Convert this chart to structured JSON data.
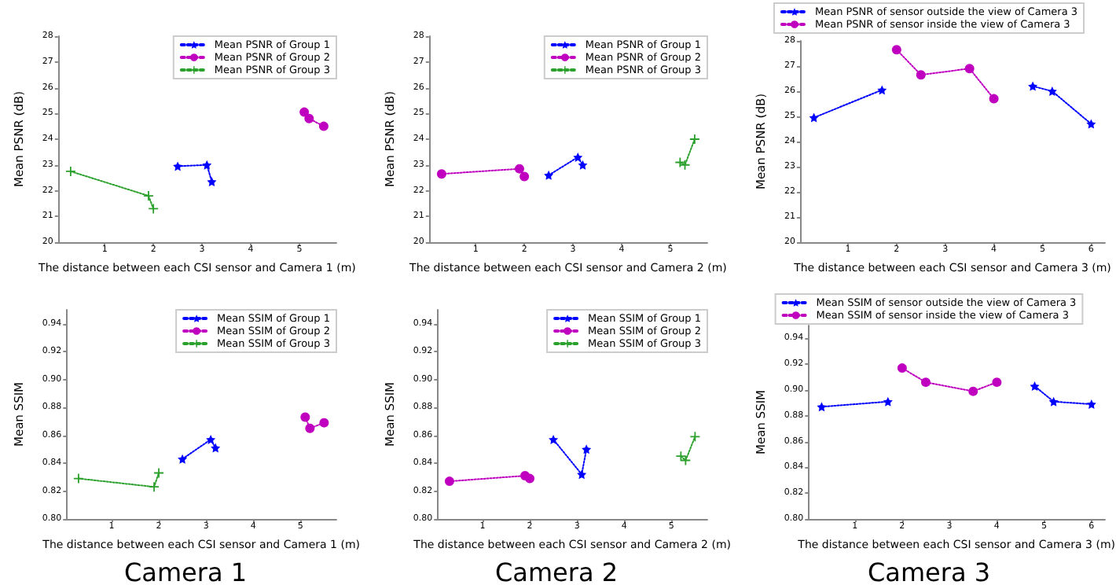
{
  "chart_data": [
    {
      "type": "line",
      "xlabel": "The distance between each CSI sensor and Camera 1 (m)",
      "ylabel": "Mean PSNR (dB)",
      "xlim": [
        0.04,
        5.76
      ],
      "xticks": [
        1,
        2,
        3,
        4,
        5
      ],
      "ylim": [
        20,
        28
      ],
      "yticks": [
        20,
        21,
        22,
        23,
        24,
        25,
        26,
        27,
        28
      ],
      "grid": false,
      "legend": "top right",
      "line_style": "dotted",
      "series": [
        {
          "name": "Mean PSNR of Group 1",
          "color": "#0000ff",
          "marker": "star",
          "x": [
            2.5,
            3.1,
            3.2
          ],
          "values": [
            22.95,
            23.0,
            22.35
          ]
        },
        {
          "name": "Mean PSNR of Group 2",
          "color": "#bf00bf",
          "marker": "circle",
          "x": [
            5.1,
            5.2,
            5.5
          ],
          "values": [
            25.05,
            24.8,
            24.5
          ]
        },
        {
          "name": "Mean PSNR of Group 3",
          "color": "#2ca02c",
          "marker": "cross",
          "x": [
            0.3,
            1.9,
            2.0
          ],
          "values": [
            22.75,
            21.8,
            21.3
          ]
        }
      ]
    },
    {
      "type": "line",
      "xlabel": "The distance between each CSI sensor and Camera 2 (m)",
      "ylabel": "Mean PSNR (dB)",
      "xlim": [
        0.04,
        5.76
      ],
      "xticks": [
        1,
        2,
        3,
        4,
        5
      ],
      "ylim": [
        20,
        28
      ],
      "yticks": [
        20,
        21,
        22,
        23,
        24,
        25,
        26,
        27,
        28
      ],
      "grid": false,
      "legend": "top right",
      "line_style": "dotted",
      "series": [
        {
          "name": "Mean PSNR of Group 1",
          "color": "#0000ff",
          "marker": "star",
          "x": [
            2.5,
            3.1,
            3.2
          ],
          "values": [
            22.6,
            23.3,
            23.0
          ]
        },
        {
          "name": "Mean PSNR of Group 2",
          "color": "#bf00bf",
          "marker": "circle",
          "x": [
            0.3,
            1.9,
            2.0
          ],
          "values": [
            22.65,
            22.85,
            22.55
          ]
        },
        {
          "name": "Mean PSNR of Group 3",
          "color": "#2ca02c",
          "marker": "cross",
          "x": [
            5.2,
            5.3,
            5.5
          ],
          "values": [
            23.1,
            23.0,
            24.0
          ]
        }
      ]
    },
    {
      "type": "line",
      "xlabel": "The distance between each CSI sensor and Camera 3 (m)",
      "ylabel": "Mean PSNR (dB)",
      "xlim": [
        0.015,
        6.285
      ],
      "xticks": [
        1,
        2,
        3,
        4,
        5,
        6
      ],
      "ylim": [
        20,
        28
      ],
      "yticks": [
        20,
        21,
        22,
        23,
        24,
        25,
        26,
        27,
        28
      ],
      "grid": false,
      "legend": "top",
      "line_style": "dotted",
      "series": [
        {
          "name": "Mean PSNR of sensor outside the view of Camera 3",
          "color": "#0000ff",
          "marker": "star",
          "x": [
            0.3,
            1.7,
            3.0,
            4.8,
            5.2,
            6.0
          ],
          "values": [
            24.95,
            26.05,
            null,
            26.2,
            26.0,
            24.7
          ]
        },
        {
          "name": "Mean PSNR of sensor inside the view of Camera 3",
          "color": "#bf00bf",
          "marker": "circle",
          "x": [
            2.0,
            2.5,
            3.5,
            4.0
          ],
          "values": [
            27.65,
            26.65,
            26.9,
            25.7
          ]
        }
      ]
    },
    {
      "type": "line",
      "xlabel": "The distance between each CSI sensor and Camera 1 (m)",
      "ylabel": "Mean SSIM",
      "annotations": [
        "Camera 1"
      ],
      "xlim": [
        0.04,
        5.76
      ],
      "xticks": [
        1,
        2,
        3,
        4,
        5
      ],
      "ylim": [
        0.8,
        0.95
      ],
      "yticks": [
        {
          "value": 0.8,
          "label": "0.80"
        },
        {
          "value": 0.82,
          "label": "0.82"
        },
        {
          "value": 0.84,
          "label": "0.84"
        },
        {
          "value": 0.86,
          "label": "0.86"
        },
        {
          "value": 0.88,
          "label": "0.88"
        },
        {
          "value": 0.9,
          "label": "0.90"
        },
        {
          "value": 0.92,
          "label": "0.92"
        },
        {
          "value": 0.94,
          "label": "0.94"
        }
      ],
      "grid": false,
      "legend": "top right",
      "line_style": "dotted",
      "series": [
        {
          "name": "Mean SSIM of Group 1",
          "color": "#0000ff",
          "marker": "star",
          "x": [
            2.5,
            3.1,
            3.2
          ],
          "values": [
            0.843,
            0.857,
            0.851
          ]
        },
        {
          "name": "Mean SSIM of Group 2",
          "color": "#bf00bf",
          "marker": "circle",
          "x": [
            5.1,
            5.2,
            5.5
          ],
          "values": [
            0.873,
            0.865,
            0.869
          ]
        },
        {
          "name": "Mean SSIM of Group 3",
          "color": "#2ca02c",
          "marker": "cross",
          "x": [
            0.3,
            1.9,
            2.0
          ],
          "values": [
            0.829,
            0.823,
            0.833
          ]
        }
      ]
    },
    {
      "type": "line",
      "xlabel": "The distance between each CSI sensor and Camera 2 (m)",
      "ylabel": "Mean SSIM",
      "annotations": [
        "Camera 2"
      ],
      "xlim": [
        0.04,
        5.76
      ],
      "xticks": [
        1,
        2,
        3,
        4,
        5
      ],
      "ylim": [
        0.8,
        0.95
      ],
      "yticks": [
        {
          "value": 0.8,
          "label": "0.80"
        },
        {
          "value": 0.82,
          "label": "0.82"
        },
        {
          "value": 0.84,
          "label": "0.84"
        },
        {
          "value": 0.86,
          "label": "0.86"
        },
        {
          "value": 0.88,
          "label": "0.88"
        },
        {
          "value": 0.9,
          "label": "0.90"
        },
        {
          "value": 0.92,
          "label": "0.92"
        },
        {
          "value": 0.94,
          "label": "0.94"
        }
      ],
      "grid": false,
      "legend": "top right",
      "line_style": "dotted",
      "series": [
        {
          "name": "Mean SSIM of Group 1",
          "color": "#0000ff",
          "marker": "star",
          "x": [
            2.5,
            3.1,
            3.2
          ],
          "values": [
            0.857,
            0.832,
            0.85
          ]
        },
        {
          "name": "Mean SSIM of Group 2",
          "color": "#bf00bf",
          "marker": "circle",
          "x": [
            0.3,
            1.9,
            2.0
          ],
          "values": [
            0.827,
            0.831,
            0.829
          ]
        },
        {
          "name": "Mean SSIM of Group 3",
          "color": "#2ca02c",
          "marker": "cross",
          "x": [
            5.2,
            5.3,
            5.5
          ],
          "values": [
            0.845,
            0.842,
            0.859
          ]
        }
      ]
    },
    {
      "type": "line",
      "xlabel": "The distance between each CSI sensor and Camera 3 (m)",
      "ylabel": "Mean SSIM",
      "annotations": [
        "Camera 3"
      ],
      "xlim": [
        0.015,
        6.285
      ],
      "xticks": [
        1,
        2,
        3,
        4,
        5,
        6
      ],
      "ylim": [
        0.8,
        0.95
      ],
      "yticks": [
        {
          "value": 0.8,
          "label": "0.80"
        },
        {
          "value": 0.82,
          "label": "0.82"
        },
        {
          "value": 0.84,
          "label": "0.84"
        },
        {
          "value": 0.86,
          "label": "0.86"
        },
        {
          "value": 0.88,
          "label": "0.88"
        },
        {
          "value": 0.9,
          "label": "0.90"
        },
        {
          "value": 0.92,
          "label": "0.92"
        },
        {
          "value": 0.94,
          "label": "0.94"
        }
      ],
      "grid": false,
      "legend": "top",
      "line_style": "dotted",
      "series": [
        {
          "name": "Mean SSIM of sensor outside the view of Camera 3",
          "color": "#0000ff",
          "marker": "star",
          "x": [
            0.3,
            1.7,
            3.0,
            4.8,
            5.2,
            6.0
          ],
          "values": [
            0.887,
            0.891,
            null,
            0.903,
            0.891,
            0.889
          ]
        },
        {
          "name": "Mean SSIM of sensor inside the view of Camera 3",
          "color": "#bf00bf",
          "marker": "circle",
          "x": [
            2.0,
            2.5,
            3.5,
            4.0
          ],
          "values": [
            0.917,
            0.906,
            0.899,
            0.906
          ]
        }
      ]
    }
  ]
}
